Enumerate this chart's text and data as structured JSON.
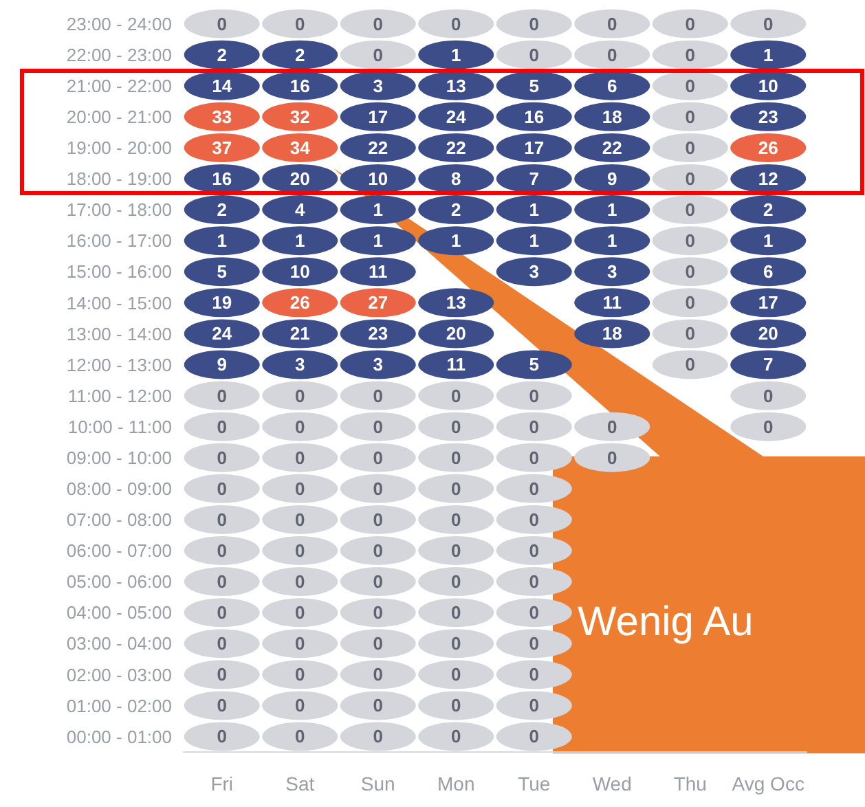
{
  "chart_data": {
    "type": "heatmap",
    "categories": [
      "Fri",
      "Sat",
      "Sun",
      "Mon",
      "Tue",
      "Wed",
      "Thu",
      "Avg Occ"
    ],
    "y_categories": [
      "23:00 - 24:00",
      "22:00 - 23:00",
      "21:00 - 22:00",
      "20:00 - 21:00",
      "19:00 - 20:00",
      "18:00 - 19:00",
      "17:00 - 18:00",
      "16:00 - 17:00",
      "15:00 - 16:00",
      "14:00 - 15:00",
      "13:00 - 14:00",
      "12:00 - 13:00",
      "11:00 - 12:00",
      "10:00 - 11:00",
      "09:00 - 10:00",
      "08:00 - 09:00",
      "07:00 - 08:00",
      "06:00 - 07:00",
      "05:00 - 06:00",
      "04:00 - 05:00",
      "03:00 - 04:00",
      "02:00 - 03:00",
      "01:00 - 02:00",
      "00:00 - 01:00"
    ],
    "cells": [
      [
        0,
        0,
        0,
        0,
        0,
        0,
        0,
        0
      ],
      [
        2,
        2,
        0,
        1,
        0,
        0,
        0,
        1
      ],
      [
        14,
        16,
        3,
        13,
        5,
        6,
        0,
        10
      ],
      [
        33,
        32,
        17,
        24,
        16,
        18,
        0,
        23
      ],
      [
        37,
        34,
        22,
        22,
        17,
        22,
        0,
        26
      ],
      [
        16,
        20,
        10,
        8,
        7,
        9,
        0,
        12
      ],
      [
        2,
        4,
        1,
        2,
        1,
        1,
        0,
        2
      ],
      [
        1,
        1,
        1,
        1,
        1,
        1,
        0,
        1
      ],
      [
        5,
        10,
        11,
        null,
        3,
        3,
        0,
        6
      ],
      [
        19,
        26,
        27,
        13,
        null,
        11,
        0,
        17
      ],
      [
        24,
        21,
        23,
        20,
        null,
        18,
        0,
        20
      ],
      [
        9,
        3,
        3,
        11,
        5,
        null,
        0,
        7
      ],
      [
        0,
        0,
        0,
        0,
        0,
        null,
        null,
        0
      ],
      [
        0,
        0,
        0,
        0,
        0,
        0,
        null,
        0
      ],
      [
        0,
        0,
        0,
        0,
        0,
        0,
        null,
        null
      ],
      [
        0,
        0,
        0,
        0,
        0,
        null,
        null,
        null
      ],
      [
        0,
        0,
        0,
        0,
        0,
        null,
        null,
        null
      ],
      [
        0,
        0,
        0,
        0,
        0,
        null,
        null,
        null
      ],
      [
        0,
        0,
        0,
        0,
        0,
        null,
        null,
        null
      ],
      [
        0,
        0,
        0,
        0,
        0,
        null,
        null,
        null
      ],
      [
        0,
        0,
        0,
        0,
        0,
        null,
        null,
        null
      ],
      [
        0,
        0,
        0,
        0,
        0,
        null,
        null,
        null
      ],
      [
        0,
        0,
        0,
        0,
        0,
        null,
        null,
        null
      ],
      [
        0,
        0,
        0,
        0,
        0,
        null,
        null,
        null
      ]
    ],
    "colors": [
      [
        "#d4d6dc",
        "#d4d6dc",
        "#d4d6dc",
        "#d4d6dc",
        "#d4d6dc",
        "#d4d6dc",
        "#d4d6dc",
        "#d4d6dc"
      ],
      [
        "#3d4d8a",
        "#3d4d8a",
        "#d4d6dc",
        "#3d4d8a",
        "#d4d6dc",
        "#d4d6dc",
        "#d4d6dc",
        "#3d4d8a"
      ],
      [
        "#3d4d8a",
        "#3d4d8a",
        "#3d4d8a",
        "#3d4d8a",
        "#3d4d8a",
        "#3d4d8a",
        "#d4d6dc",
        "#3d4d8a"
      ],
      [
        "#ec6446",
        "#ec6446",
        "#3d4d8a",
        "#3d4d8a",
        "#3d4d8a",
        "#3d4d8a",
        "#d4d6dc",
        "#3d4d8a"
      ],
      [
        "#ec6446",
        "#ec6446",
        "#3d4d8a",
        "#3d4d8a",
        "#3d4d8a",
        "#3d4d8a",
        "#d4d6dc",
        "#ec6446"
      ],
      [
        "#3d4d8a",
        "#3d4d8a",
        "#3d4d8a",
        "#3d4d8a",
        "#3d4d8a",
        "#3d4d8a",
        "#d4d6dc",
        "#3d4d8a"
      ],
      [
        "#3d4d8a",
        "#3d4d8a",
        "#3d4d8a",
        "#3d4d8a",
        "#3d4d8a",
        "#3d4d8a",
        "#d4d6dc",
        "#3d4d8a"
      ],
      [
        "#3d4d8a",
        "#3d4d8a",
        "#3d4d8a",
        "#3d4d8a",
        "#3d4d8a",
        "#3d4d8a",
        "#d4d6dc",
        "#3d4d8a"
      ],
      [
        "#3d4d8a",
        "#3d4d8a",
        "#3d4d8a",
        null,
        "#3d4d8a",
        "#3d4d8a",
        "#d4d6dc",
        "#3d4d8a"
      ],
      [
        "#3d4d8a",
        "#ec6446",
        "#ec6446",
        "#3d4d8a",
        null,
        "#3d4d8a",
        "#d4d6dc",
        "#3d4d8a"
      ],
      [
        "#3d4d8a",
        "#3d4d8a",
        "#3d4d8a",
        "#3d4d8a",
        null,
        "#3d4d8a",
        "#d4d6dc",
        "#3d4d8a"
      ],
      [
        "#3d4d8a",
        "#3d4d8a",
        "#3d4d8a",
        "#3d4d8a",
        "#3d4d8a",
        null,
        "#d4d6dc",
        "#3d4d8a"
      ],
      [
        "#d4d6dc",
        "#d4d6dc",
        "#d4d6dc",
        "#d4d6dc",
        "#d4d6dc",
        null,
        null,
        "#d4d6dc"
      ],
      [
        "#d4d6dc",
        "#d4d6dc",
        "#d4d6dc",
        "#d4d6dc",
        "#d4d6dc",
        "#d4d6dc",
        null,
        "#d4d6dc"
      ],
      [
        "#d4d6dc",
        "#d4d6dc",
        "#d4d6dc",
        "#d4d6dc",
        "#d4d6dc",
        "#d4d6dc",
        null,
        null
      ],
      [
        "#d4d6dc",
        "#d4d6dc",
        "#d4d6dc",
        "#d4d6dc",
        "#d4d6dc",
        null,
        null,
        null
      ],
      [
        "#d4d6dc",
        "#d4d6dc",
        "#d4d6dc",
        "#d4d6dc",
        "#d4d6dc",
        null,
        null,
        null
      ],
      [
        "#d4d6dc",
        "#d4d6dc",
        "#d4d6dc",
        "#d4d6dc",
        "#d4d6dc",
        null,
        null,
        null
      ],
      [
        "#d4d6dc",
        "#d4d6dc",
        "#d4d6dc",
        "#d4d6dc",
        "#d4d6dc",
        null,
        null,
        null
      ],
      [
        "#d4d6dc",
        "#d4d6dc",
        "#d4d6dc",
        "#d4d6dc",
        "#d4d6dc",
        null,
        null,
        null
      ],
      [
        "#d4d6dc",
        "#d4d6dc",
        "#d4d6dc",
        "#d4d6dc",
        "#d4d6dc",
        null,
        null,
        null
      ],
      [
        "#d4d6dc",
        "#d4d6dc",
        "#d4d6dc",
        "#d4d6dc",
        "#d4d6dc",
        null,
        null,
        null
      ],
      [
        "#d4d6dc",
        "#d4d6dc",
        "#d4d6dc",
        "#d4d6dc",
        "#d4d6dc",
        null,
        null,
        null
      ],
      [
        "#d4d6dc",
        "#d4d6dc",
        "#d4d6dc",
        "#d4d6dc",
        "#d4d6dc",
        null,
        null,
        null
      ]
    ],
    "data_labels": true,
    "annotations": [
      "Wenig Au"
    ]
  }
}
